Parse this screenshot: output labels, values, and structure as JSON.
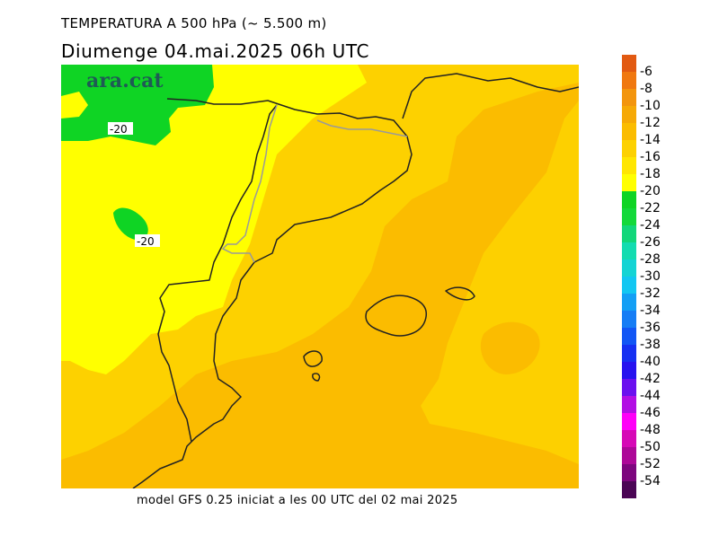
{
  "header": {
    "title": "TEMPERATURA A 500 hPa (~ 5.500 m)",
    "subtitle": "Diumenge  04.mai.2025 06h UTC"
  },
  "map": {
    "logo": "ara.cat",
    "contour_labels": [
      "-20",
      "-20"
    ]
  },
  "footer": {
    "text": "model GFS 0.25 iniciat a les 00 UTC del 02 mai 2025"
  },
  "colorbar": {
    "labels": [
      "-6",
      "-8",
      "-10",
      "-12",
      "-14",
      "-16",
      "-18",
      "-20",
      "-22",
      "-24",
      "-26",
      "-28",
      "-30",
      "-32",
      "-34",
      "-36",
      "-38",
      "-40",
      "-42",
      "-44",
      "-46",
      "-48",
      "-50",
      "-52",
      "-54"
    ],
    "colors": [
      "#e25a12",
      "#f07810",
      "#f3950d",
      "#f6a906",
      "#fbbc00",
      "#fdd100",
      "#ffe600",
      "#ffff00",
      "#0fd424",
      "#13d93a",
      "#12d77a",
      "#13dcb0",
      "#14d4d4",
      "#12c7f2",
      "#139ff5",
      "#167df5",
      "#1256f5",
      "#1630f2",
      "#2712ef",
      "#6a10ef",
      "#b20ee4",
      "#ff00f8",
      "#d609b6",
      "#ad0898",
      "#7d067e",
      "#4b0555"
    ]
  }
}
